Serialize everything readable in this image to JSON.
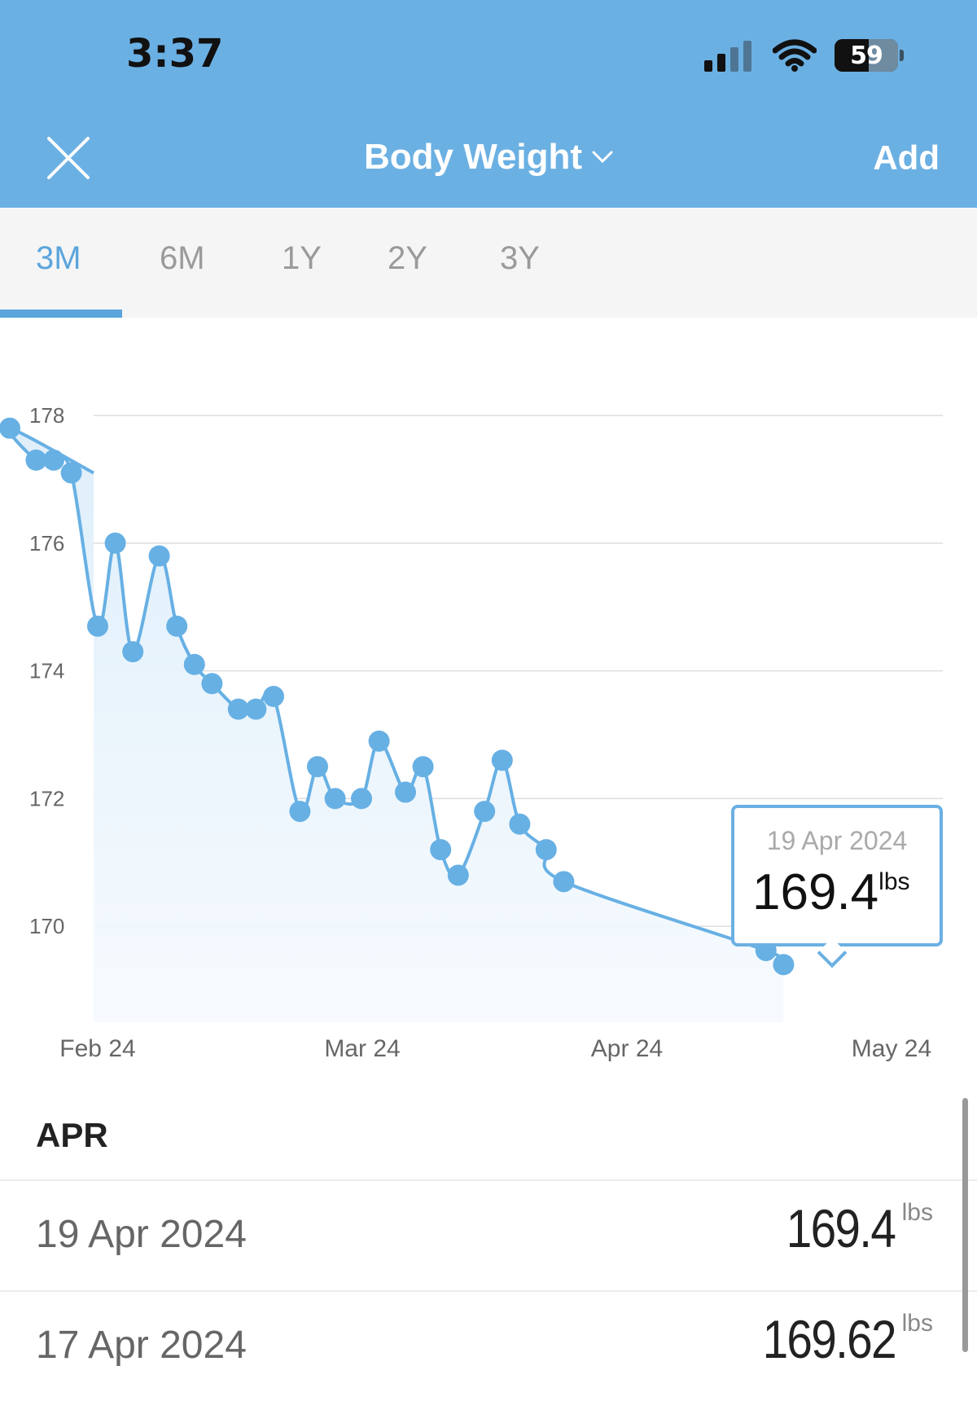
{
  "status_bar": {
    "time": "3:37",
    "battery": "59"
  },
  "header": {
    "title": "Body Weight",
    "add_label": "Add"
  },
  "tabs": [
    {
      "label": "3M",
      "active": true
    },
    {
      "label": "6M",
      "active": false
    },
    {
      "label": "1Y",
      "active": false
    },
    {
      "label": "2Y",
      "active": false
    },
    {
      "label": "3Y",
      "active": false
    }
  ],
  "chart_data": {
    "type": "area",
    "y_ticks": [
      "178",
      "176",
      "174",
      "172",
      "170"
    ],
    "x_ticks": [
      "Feb 24",
      "Mar 24",
      "Apr 24",
      "May 24"
    ],
    "ylim": [
      168.4,
      178.2
    ],
    "grid": true,
    "series": [
      {
        "x": [
          "2024-01-22",
          "2024-01-25",
          "2024-01-27",
          "2024-01-29",
          "2024-02-01",
          "2024-02-03",
          "2024-02-05",
          "2024-02-08",
          "2024-02-10",
          "2024-02-12",
          "2024-02-14",
          "2024-02-17",
          "2024-02-19",
          "2024-02-21",
          "2024-02-24",
          "2024-02-26",
          "2024-02-28",
          "2024-03-02",
          "2024-03-04",
          "2024-03-07",
          "2024-03-09",
          "2024-03-11",
          "2024-03-13",
          "2024-03-16",
          "2024-03-18",
          "2024-03-20",
          "2024-03-23",
          "2024-03-25",
          "2024-04-17",
          "2024-04-19"
        ],
        "y": [
          177.8,
          177.3,
          177.3,
          177.1,
          174.7,
          176.0,
          174.3,
          175.8,
          174.7,
          174.1,
          173.8,
          173.4,
          173.4,
          173.6,
          171.8,
          172.5,
          172.0,
          172.0,
          172.9,
          172.1,
          172.5,
          171.2,
          170.8,
          171.8,
          172.6,
          171.6,
          171.2,
          170.7,
          169.62,
          169.4
        ]
      }
    ]
  },
  "tooltip": {
    "date": "19 Apr 2024",
    "value": "169.4",
    "unit": "lbs"
  },
  "list": {
    "section": "APR",
    "rows": [
      {
        "date": "19 Apr 2024",
        "value": "169.4",
        "unit": "lbs"
      },
      {
        "date": "17 Apr 2024",
        "value": "169.62",
        "unit": "lbs"
      }
    ]
  },
  "colors": {
    "accent": "#6bb0e3",
    "line": "#67b0e4",
    "fill": "#e6f2fb"
  }
}
